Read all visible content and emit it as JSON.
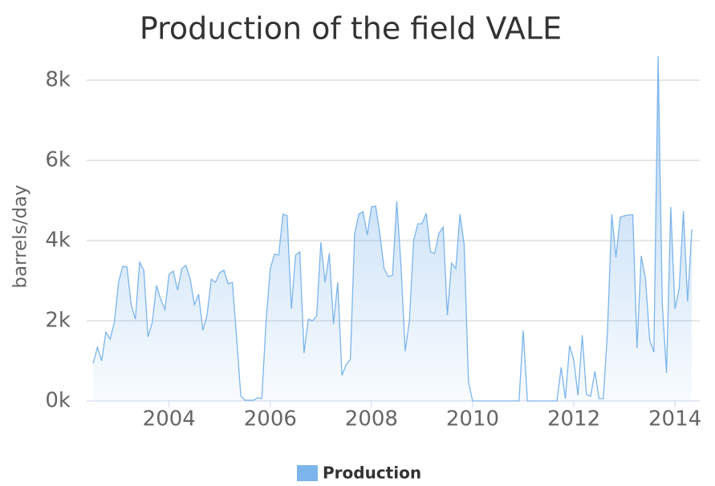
{
  "chart_data": {
    "type": "area",
    "title": "Production of the field VALE",
    "ylabel": "barrels/day",
    "x": [
      2002.5,
      2002.583,
      2002.667,
      2002.75,
      2002.833,
      2002.917,
      2003,
      2003.083,
      2003.167,
      2003.25,
      2003.333,
      2003.417,
      2003.5,
      2003.583,
      2003.667,
      2003.75,
      2003.833,
      2003.917,
      2004,
      2004.083,
      2004.167,
      2004.25,
      2004.333,
      2004.417,
      2004.5,
      2004.583,
      2004.667,
      2004.75,
      2004.833,
      2004.917,
      2005,
      2005.083,
      2005.167,
      2005.25,
      2005.333,
      2005.417,
      2005.5,
      2005.583,
      2005.667,
      2005.75,
      2005.833,
      2005.917,
      2006,
      2006.083,
      2006.167,
      2006.25,
      2006.333,
      2006.417,
      2006.5,
      2006.583,
      2006.667,
      2006.75,
      2006.833,
      2006.917,
      2007,
      2007.083,
      2007.167,
      2007.25,
      2007.333,
      2007.417,
      2007.5,
      2007.583,
      2007.667,
      2007.75,
      2007.833,
      2007.917,
      2008,
      2008.083,
      2008.167,
      2008.25,
      2008.333,
      2008.417,
      2008.5,
      2008.583,
      2008.667,
      2008.75,
      2008.833,
      2008.917,
      2009,
      2009.083,
      2009.167,
      2009.25,
      2009.333,
      2009.417,
      2009.5,
      2009.583,
      2009.667,
      2009.75,
      2009.833,
      2009.917,
      2010,
      2010.083,
      2010.167,
      2010.25,
      2010.333,
      2010.417,
      2010.5,
      2010.583,
      2010.667,
      2010.75,
      2010.833,
      2010.917,
      2011,
      2011.083,
      2011.167,
      2011.25,
      2011.333,
      2011.417,
      2011.5,
      2011.583,
      2011.667,
      2011.75,
      2011.833,
      2011.917,
      2012,
      2012.083,
      2012.167,
      2012.25,
      2012.333,
      2012.417,
      2012.5,
      2012.583,
      2012.667,
      2012.75,
      2012.833,
      2012.917,
      2013,
      2013.083,
      2013.167,
      2013.25,
      2013.333,
      2013.417,
      2013.5,
      2013.583,
      2013.667,
      2013.75,
      2013.833,
      2013.917,
      2014,
      2014.083,
      2014.167,
      2014.25,
      2014.333
    ],
    "series": [
      {
        "name": "Production",
        "color": "#7cb5ec",
        "values": [
          940,
          1340,
          1000,
          1720,
          1540,
          1960,
          2960,
          3360,
          3340,
          2400,
          2040,
          3460,
          3260,
          1600,
          1960,
          2880,
          2540,
          2280,
          3160,
          3240,
          2760,
          3300,
          3380,
          3040,
          2400,
          2660,
          1760,
          2140,
          3040,
          2960,
          3200,
          3260,
          2920,
          2960,
          1600,
          120,
          20,
          20,
          20,
          80,
          60,
          2000,
          3300,
          3660,
          3640,
          4660,
          4620,
          2300,
          3640,
          3720,
          1200,
          2040,
          2000,
          2120,
          3960,
          2960,
          3680,
          1920,
          2960,
          640,
          900,
          1040,
          4160,
          4660,
          4720,
          4140,
          4840,
          4860,
          4160,
          3300,
          3100,
          3140,
          4980,
          3400,
          1240,
          2000,
          4000,
          4420,
          4420,
          4680,
          3720,
          3680,
          4180,
          4340,
          2140,
          3440,
          3300,
          4660,
          3900,
          480,
          0,
          0,
          0,
          0,
          0,
          0,
          0,
          0,
          0,
          0,
          0,
          0,
          1760,
          0,
          0,
          0,
          0,
          0,
          0,
          0,
          0,
          840,
          60,
          1380,
          1020,
          140,
          1640,
          160,
          120,
          740,
          60,
          60,
          1760,
          4660,
          3580,
          4580,
          4620,
          4640,
          4640,
          1320,
          3620,
          3060,
          1520,
          1220,
          8600,
          2400,
          700,
          4840,
          2300,
          2800,
          4740,
          2480,
          4280
        ]
      }
    ],
    "xlim": [
      2002.37,
      2014.49
    ],
    "xticks": [
      2004,
      2006,
      2008,
      2010,
      2012,
      2014
    ],
    "ylim": [
      0,
      8600
    ],
    "yticks": [
      {
        "value": 0,
        "label": "0k"
      },
      {
        "value": 2000,
        "label": "2k"
      },
      {
        "value": 4000,
        "label": "4k"
      },
      {
        "value": 6000,
        "label": "6k"
      },
      {
        "value": 8000,
        "label": "8k"
      }
    ],
    "grid": true,
    "legend": "bottom"
  }
}
